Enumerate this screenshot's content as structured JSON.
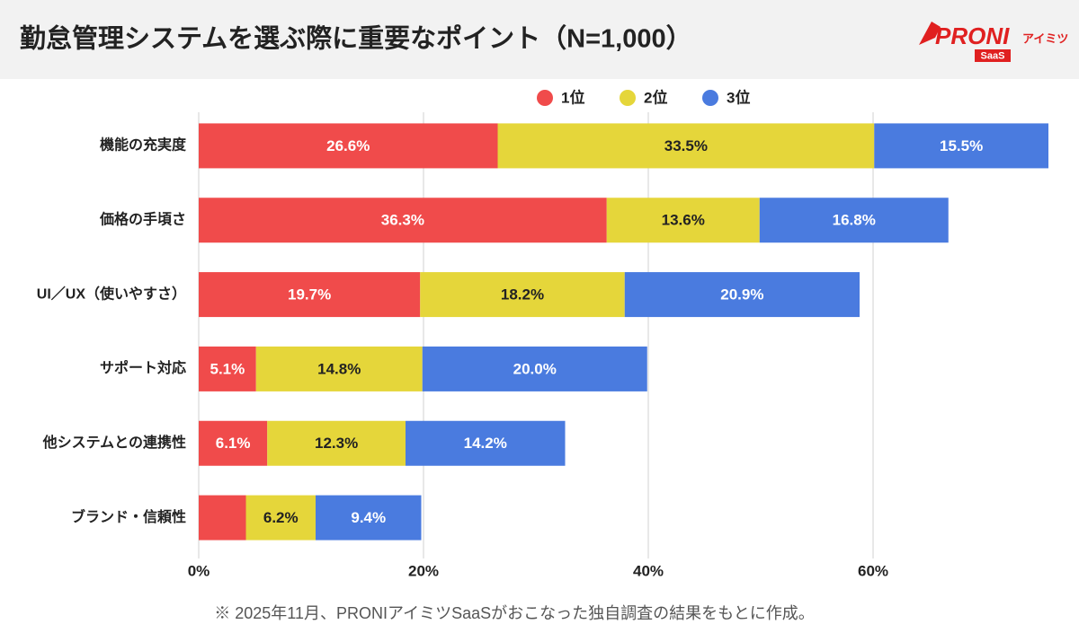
{
  "chart_data": {
    "type": "stacked-bar-horizontal",
    "title": "勤怠管理システムを選ぶ際に重要なポイント（N=1,000）",
    "categories": [
      "機能の充実度",
      "価格の手頃さ",
      "UI／UX（使いやすさ）",
      "サポート対応",
      "他システムとの連携性",
      "ブランド・信頼性"
    ],
    "series": [
      {
        "name": "1位",
        "color": "#f04b4b",
        "values": [
          26.6,
          36.3,
          19.7,
          5.1,
          6.1,
          4.2
        ],
        "value_labels": [
          "26.6%",
          "36.3%",
          "19.7%",
          "5.1%",
          "6.1%",
          null
        ]
      },
      {
        "name": "2位",
        "color": "#e5d63a",
        "values": [
          33.5,
          13.6,
          18.2,
          14.8,
          12.3,
          6.2
        ],
        "value_labels": [
          "33.5%",
          "13.6%",
          "18.2%",
          "14.8%",
          "12.3%",
          "6.2%"
        ]
      },
      {
        "name": "3位",
        "color": "#4a7bdf",
        "values": [
          15.5,
          16.8,
          20.9,
          20.0,
          14.2,
          9.4
        ],
        "value_labels": [
          "15.5%",
          "16.8%",
          "20.9%",
          "20.0%",
          "14.2%",
          "9.4%"
        ]
      }
    ],
    "xlim": [
      0,
      78
    ],
    "xticks": [
      {
        "value": 0,
        "label": "0%"
      },
      {
        "value": 20,
        "label": "20%"
      },
      {
        "value": 40,
        "label": "40%"
      },
      {
        "value": 60,
        "label": "60%"
      }
    ],
    "grid": true,
    "legend": "top",
    "note": "※ 2025年11月、PRONIアイミツSaaSがおこなった独自調査の結果をもとに作成。"
  },
  "logo": {
    "brand": "PRONI",
    "sub": "アイミツ",
    "tag": "SaaS"
  }
}
